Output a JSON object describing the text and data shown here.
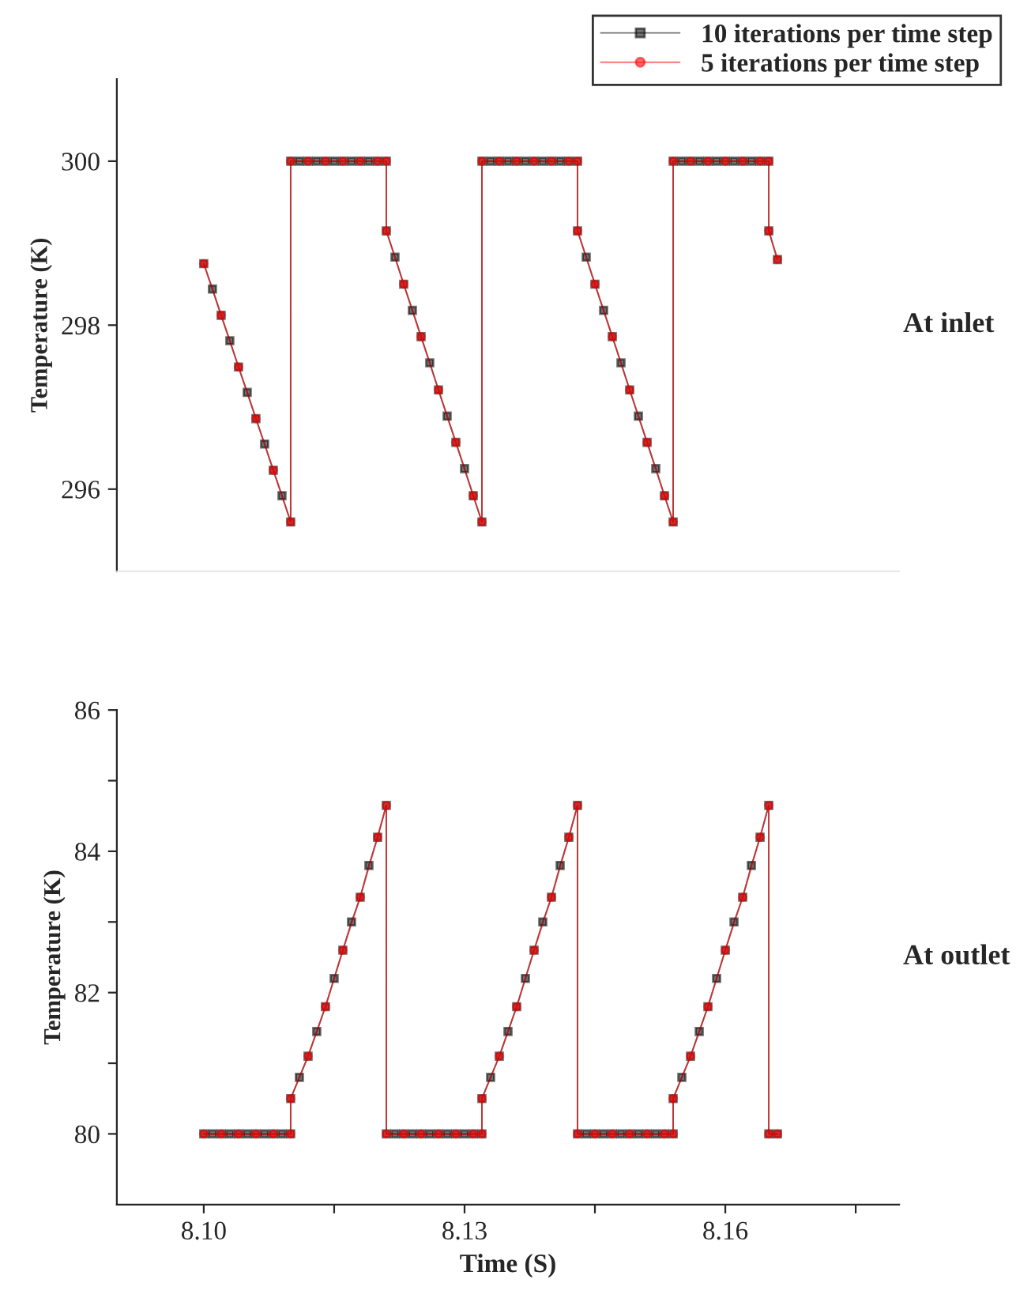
{
  "chart_data": [
    {
      "type": "line",
      "ylabel": "Temperature (K)",
      "annotations": [
        "At inlet"
      ],
      "xlim": [
        8.09,
        8.18
      ],
      "ylim": [
        295,
        301
      ],
      "yticks": [
        296,
        298,
        300
      ],
      "tick_labels": "y",
      "legend": "top right",
      "grid": false,
      "series": [
        {
          "name": "10 iterations per time step",
          "color": "#000000",
          "marker": "square",
          "x": [
            8.1,
            8.101,
            8.102,
            8.103,
            8.104,
            8.105,
            8.106,
            8.107,
            8.108,
            8.109,
            8.11,
            8.11,
            8.111,
            8.112,
            8.113,
            8.114,
            8.115,
            8.116,
            8.117,
            8.118,
            8.119,
            8.12,
            8.121,
            8.121,
            8.122,
            8.123,
            8.124,
            8.125,
            8.126,
            8.127,
            8.128,
            8.129,
            8.13,
            8.131,
            8.132,
            8.132,
            8.133,
            8.134,
            8.135,
            8.136,
            8.137,
            8.138,
            8.139,
            8.14,
            8.141,
            8.142,
            8.143,
            8.143,
            8.144,
            8.145,
            8.146,
            8.147,
            8.148,
            8.149,
            8.15,
            8.151,
            8.152,
            8.153,
            8.154,
            8.154,
            8.155,
            8.156,
            8.157,
            8.158,
            8.159,
            8.16,
            8.161,
            8.162,
            8.163,
            8.164,
            8.165,
            8.165,
            8.166
          ],
          "values": [
            298.75,
            298.44,
            298.12,
            297.81,
            297.49,
            297.18,
            296.86,
            296.55,
            296.23,
            295.92,
            295.6,
            300,
            300,
            300,
            300,
            300,
            300,
            300,
            300,
            300,
            300,
            300,
            300,
            299.15,
            298.83,
            298.5,
            298.18,
            297.86,
            297.54,
            297.21,
            296.89,
            296.57,
            296.25,
            295.92,
            295.6,
            300,
            300,
            300,
            300,
            300,
            300,
            300,
            300,
            300,
            300,
            300,
            300,
            299.15,
            298.83,
            298.5,
            298.18,
            297.86,
            297.54,
            297.21,
            296.89,
            296.57,
            296.25,
            295.92,
            295.6,
            300,
            300,
            300,
            300,
            300,
            300,
            300,
            300,
            300,
            300,
            300,
            300,
            299.15,
            298.8
          ]
        },
        {
          "name": "5 iterations per time step",
          "color": "#ff0000",
          "marker": "circle",
          "x": [
            8.1,
            8.102,
            8.104,
            8.106,
            8.108,
            8.11,
            8.11,
            8.112,
            8.114,
            8.116,
            8.118,
            8.12,
            8.121,
            8.121,
            8.123,
            8.125,
            8.127,
            8.129,
            8.131,
            8.132,
            8.132,
            8.134,
            8.136,
            8.138,
            8.14,
            8.142,
            8.143,
            8.143,
            8.145,
            8.147,
            8.149,
            8.151,
            8.153,
            8.154,
            8.154,
            8.156,
            8.158,
            8.16,
            8.162,
            8.164,
            8.165,
            8.165,
            8.166
          ],
          "values": [
            298.75,
            298.12,
            297.49,
            296.86,
            296.23,
            295.6,
            300,
            300,
            300,
            300,
            300,
            300,
            300,
            299.15,
            298.5,
            297.86,
            297.21,
            296.57,
            295.92,
            295.6,
            300,
            300,
            300,
            300,
            300,
            300,
            300,
            299.15,
            298.5,
            297.86,
            297.21,
            296.57,
            295.92,
            295.6,
            300,
            300,
            300,
            300,
            300,
            300,
            300,
            299.15,
            298.8
          ]
        }
      ]
    },
    {
      "type": "line",
      "xlabel": "Time (S)",
      "ylabel": "Temperature (K)",
      "annotations": [
        "At outlet"
      ],
      "xlim": [
        8.09,
        8.18
      ],
      "xticks": [
        {
          "value": 8.1,
          "label": "8.10"
        },
        {
          "value": 8.115,
          "label": null
        },
        {
          "value": 8.13,
          "label": "8.13"
        },
        {
          "value": 8.145,
          "label": null
        },
        {
          "value": 8.16,
          "label": "8.16"
        },
        {
          "value": 8.175,
          "label": null
        }
      ],
      "ylim": [
        79,
        86
      ],
      "yticks": [
        {
          "value": 80,
          "label": "80"
        },
        {
          "value": 81,
          "label": null
        },
        {
          "value": 82,
          "label": "82"
        },
        {
          "value": 83,
          "label": null
        },
        {
          "value": 84,
          "label": "84"
        },
        {
          "value": 85,
          "label": null
        },
        {
          "value": 86,
          "label": "86"
        }
      ],
      "grid": false,
      "series": [
        {
          "color": "#000000",
          "marker": "square",
          "x": [
            8.1,
            8.101,
            8.102,
            8.103,
            8.104,
            8.105,
            8.106,
            8.107,
            8.108,
            8.109,
            8.11,
            8.11,
            8.111,
            8.112,
            8.113,
            8.114,
            8.115,
            8.116,
            8.117,
            8.118,
            8.119,
            8.12,
            8.121,
            8.121,
            8.122,
            8.123,
            8.124,
            8.125,
            8.126,
            8.127,
            8.128,
            8.129,
            8.13,
            8.131,
            8.132,
            8.132,
            8.133,
            8.134,
            8.135,
            8.136,
            8.137,
            8.138,
            8.139,
            8.14,
            8.141,
            8.142,
            8.143,
            8.143,
            8.144,
            8.145,
            8.146,
            8.147,
            8.148,
            8.149,
            8.15,
            8.151,
            8.152,
            8.153,
            8.154,
            8.154,
            8.155,
            8.156,
            8.157,
            8.158,
            8.159,
            8.16,
            8.161,
            8.162,
            8.163,
            8.164,
            8.165,
            8.165,
            8.166
          ],
          "values": [
            80,
            80,
            80,
            80,
            80,
            80,
            80,
            80,
            80,
            80,
            80,
            80.5,
            80.8,
            81.1,
            81.45,
            81.8,
            82.2,
            82.6,
            83.0,
            83.35,
            83.8,
            84.2,
            84.65,
            80,
            80,
            80,
            80,
            80,
            80,
            80,
            80,
            80,
            80,
            80,
            80,
            80.5,
            80.8,
            81.1,
            81.45,
            81.8,
            82.2,
            82.6,
            83.0,
            83.35,
            83.8,
            84.2,
            84.65,
            80,
            80,
            80,
            80,
            80,
            80,
            80,
            80,
            80,
            80,
            80,
            80,
            80.5,
            80.8,
            81.1,
            81.45,
            81.8,
            82.2,
            82.6,
            83.0,
            83.35,
            83.8,
            84.2,
            84.65,
            80,
            80
          ]
        },
        {
          "color": "#ff0000",
          "marker": "circle",
          "x": [
            8.1,
            8.102,
            8.104,
            8.106,
            8.108,
            8.11,
            8.11,
            8.112,
            8.114,
            8.116,
            8.118,
            8.12,
            8.121,
            8.121,
            8.123,
            8.125,
            8.127,
            8.129,
            8.131,
            8.132,
            8.132,
            8.134,
            8.136,
            8.138,
            8.14,
            8.142,
            8.143,
            8.143,
            8.145,
            8.147,
            8.149,
            8.151,
            8.153,
            8.154,
            8.154,
            8.156,
            8.158,
            8.16,
            8.162,
            8.164,
            8.165,
            8.165,
            8.166
          ],
          "values": [
            80,
            80,
            80,
            80,
            80,
            80,
            80.5,
            81.1,
            81.8,
            82.6,
            83.35,
            84.2,
            84.65,
            80,
            80,
            80,
            80,
            80,
            80,
            80,
            80.5,
            81.1,
            81.8,
            82.6,
            83.35,
            84.2,
            84.65,
            80,
            80,
            80,
            80,
            80,
            80,
            80,
            80.5,
            81.1,
            81.8,
            82.6,
            83.35,
            84.2,
            84.65,
            80,
            80
          ]
        }
      ]
    }
  ]
}
